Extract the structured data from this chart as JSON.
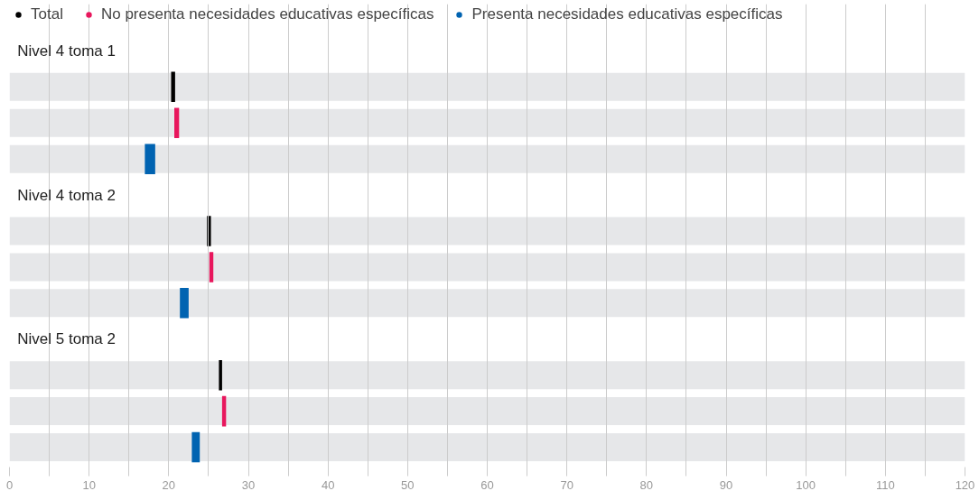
{
  "chart_data": {
    "type": "bar",
    "orientation": "horizontal",
    "categories": [
      "Nivel 4 toma 1",
      "Nivel 4 toma 2",
      "Nivel 5 toma 2"
    ],
    "series": [
      {
        "name": "Total",
        "color": "#000000",
        "base": [
          20.3,
          24.8,
          26.3
        ],
        "values": [
          0.5,
          0.5,
          0.4
        ]
      },
      {
        "name": "No presenta necesidades educativas específicas",
        "color": "#e8175d",
        "base": [
          20.7,
          25.1,
          26.7
        ],
        "values": [
          0.6,
          0.5,
          0.5
        ]
      },
      {
        "name": "Presenta necesidades educativas específicas",
        "color": "#0063b1",
        "base": [
          17.0,
          21.4,
          22.9
        ],
        "values": [
          1.3,
          1.1,
          1.0
        ]
      }
    ],
    "xlim": [
      0,
      120
    ],
    "xticks": [
      0,
      {
        "value": 5,
        "label": null
      },
      10,
      {
        "value": 15,
        "label": null
      },
      20,
      {
        "value": 25,
        "label": null
      },
      30,
      {
        "value": 35,
        "label": null
      },
      40,
      {
        "value": 45,
        "label": null
      },
      50,
      {
        "value": 55,
        "label": null
      },
      60,
      {
        "value": 65,
        "label": null
      },
      70,
      {
        "value": 75,
        "label": null
      },
      80,
      {
        "value": 85,
        "label": null
      },
      90,
      {
        "value": 95,
        "label": null
      },
      100,
      {
        "value": 105,
        "label": null
      },
      110,
      {
        "value": 115,
        "label": null
      },
      120
    ],
    "grid": "x",
    "legend": "top left"
  }
}
